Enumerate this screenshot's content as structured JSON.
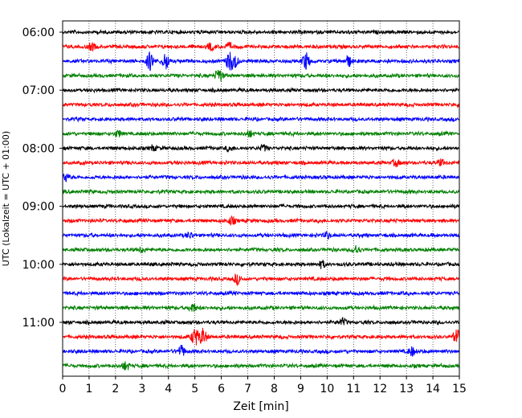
{
  "chart_data": {
    "type": "line",
    "title": "",
    "xlabel": "Zeit  [min]",
    "ylabel": "UTC (Lokalzeit = UTC + 01:00)",
    "xlim": [
      0,
      15
    ],
    "x_ticks": [
      "0",
      "1",
      "2",
      "3",
      "4",
      "5",
      "6",
      "7",
      "8",
      "9",
      "10",
      "11",
      "12",
      "13",
      "14",
      "15"
    ],
    "y_ticks": [
      "06:00",
      "07:00",
      "08:00",
      "09:00",
      "10:00",
      "11:00"
    ],
    "grid": "vertical dotted lines at each minute",
    "legend": "none",
    "row_interval_minutes": 15,
    "start_time": "06:00",
    "colors": [
      "#000000",
      "#ff0000",
      "#0000ff",
      "#008000"
    ],
    "series": [
      {
        "time": "06:00",
        "color": "#000000",
        "events": []
      },
      {
        "time": "06:15",
        "color": "#ff0000",
        "events": [
          {
            "t": 1.1,
            "amp": 0.35
          },
          {
            "t": 5.6,
            "amp": 0.35
          },
          {
            "t": 6.3,
            "amp": 0.4
          }
        ]
      },
      {
        "time": "06:30",
        "color": "#0000ff",
        "events": [
          {
            "t": 3.3,
            "amp": 1.0
          },
          {
            "t": 3.9,
            "amp": 0.9
          },
          {
            "t": 6.3,
            "amp": 0.9
          },
          {
            "t": 6.5,
            "amp": 0.7
          },
          {
            "t": 9.2,
            "amp": 0.9
          },
          {
            "t": 10.8,
            "amp": 0.6
          }
        ]
      },
      {
        "time": "06:45",
        "color": "#008000",
        "events": [
          {
            "t": 5.9,
            "amp": 0.8
          }
        ]
      },
      {
        "time": "07:00",
        "color": "#000000",
        "events": []
      },
      {
        "time": "07:15",
        "color": "#ff0000",
        "events": []
      },
      {
        "time": "07:30",
        "color": "#0000ff",
        "events": []
      },
      {
        "time": "07:45",
        "color": "#008000",
        "events": [
          {
            "t": 2.1,
            "amp": 0.3
          },
          {
            "t": 7.1,
            "amp": 0.3
          }
        ]
      },
      {
        "time": "08:00",
        "color": "#000000",
        "events": [
          {
            "t": 3.4,
            "amp": 0.3
          },
          {
            "t": 6.3,
            "amp": 0.3
          },
          {
            "t": 7.6,
            "amp": 0.3
          }
        ]
      },
      {
        "time": "08:15",
        "color": "#ff0000",
        "events": [
          {
            "t": 12.6,
            "amp": 0.35
          },
          {
            "t": 14.3,
            "amp": 0.35
          }
        ]
      },
      {
        "time": "08:30",
        "color": "#0000ff",
        "events": [
          {
            "t": 0.1,
            "amp": 0.5
          }
        ]
      },
      {
        "time": "08:45",
        "color": "#008000",
        "events": []
      },
      {
        "time": "09:00",
        "color": "#000000",
        "events": []
      },
      {
        "time": "09:15",
        "color": "#ff0000",
        "events": [
          {
            "t": 6.4,
            "amp": 0.45
          }
        ]
      },
      {
        "time": "09:30",
        "color": "#0000ff",
        "events": [
          {
            "t": 4.8,
            "amp": 0.3
          },
          {
            "t": 10.0,
            "amp": 0.35
          }
        ]
      },
      {
        "time": "09:45",
        "color": "#008000",
        "events": [
          {
            "t": 3.0,
            "amp": 0.3
          },
          {
            "t": 11.1,
            "amp": 0.45
          }
        ]
      },
      {
        "time": "10:00",
        "color": "#000000",
        "events": [
          {
            "t": 9.8,
            "amp": 0.35
          }
        ]
      },
      {
        "time": "10:15",
        "color": "#ff0000",
        "events": [
          {
            "t": 6.6,
            "amp": 0.5
          }
        ]
      },
      {
        "time": "10:30",
        "color": "#0000ff",
        "events": []
      },
      {
        "time": "10:45",
        "color": "#008000",
        "events": [
          {
            "t": 4.9,
            "amp": 0.5
          }
        ]
      },
      {
        "time": "11:00",
        "color": "#000000",
        "events": [
          {
            "t": 10.6,
            "amp": 0.35
          }
        ]
      },
      {
        "time": "11:15",
        "color": "#ff0000",
        "events": [
          {
            "t": 5.0,
            "amp": 1.0
          },
          {
            "t": 5.3,
            "amp": 0.9
          },
          {
            "t": 14.9,
            "amp": 0.7
          }
        ]
      },
      {
        "time": "11:30",
        "color": "#0000ff",
        "events": [
          {
            "t": 4.5,
            "amp": 0.6
          },
          {
            "t": 13.2,
            "amp": 0.5
          }
        ]
      },
      {
        "time": "11:45",
        "color": "#008000",
        "events": [
          {
            "t": 2.4,
            "amp": 0.45
          }
        ]
      }
    ]
  }
}
